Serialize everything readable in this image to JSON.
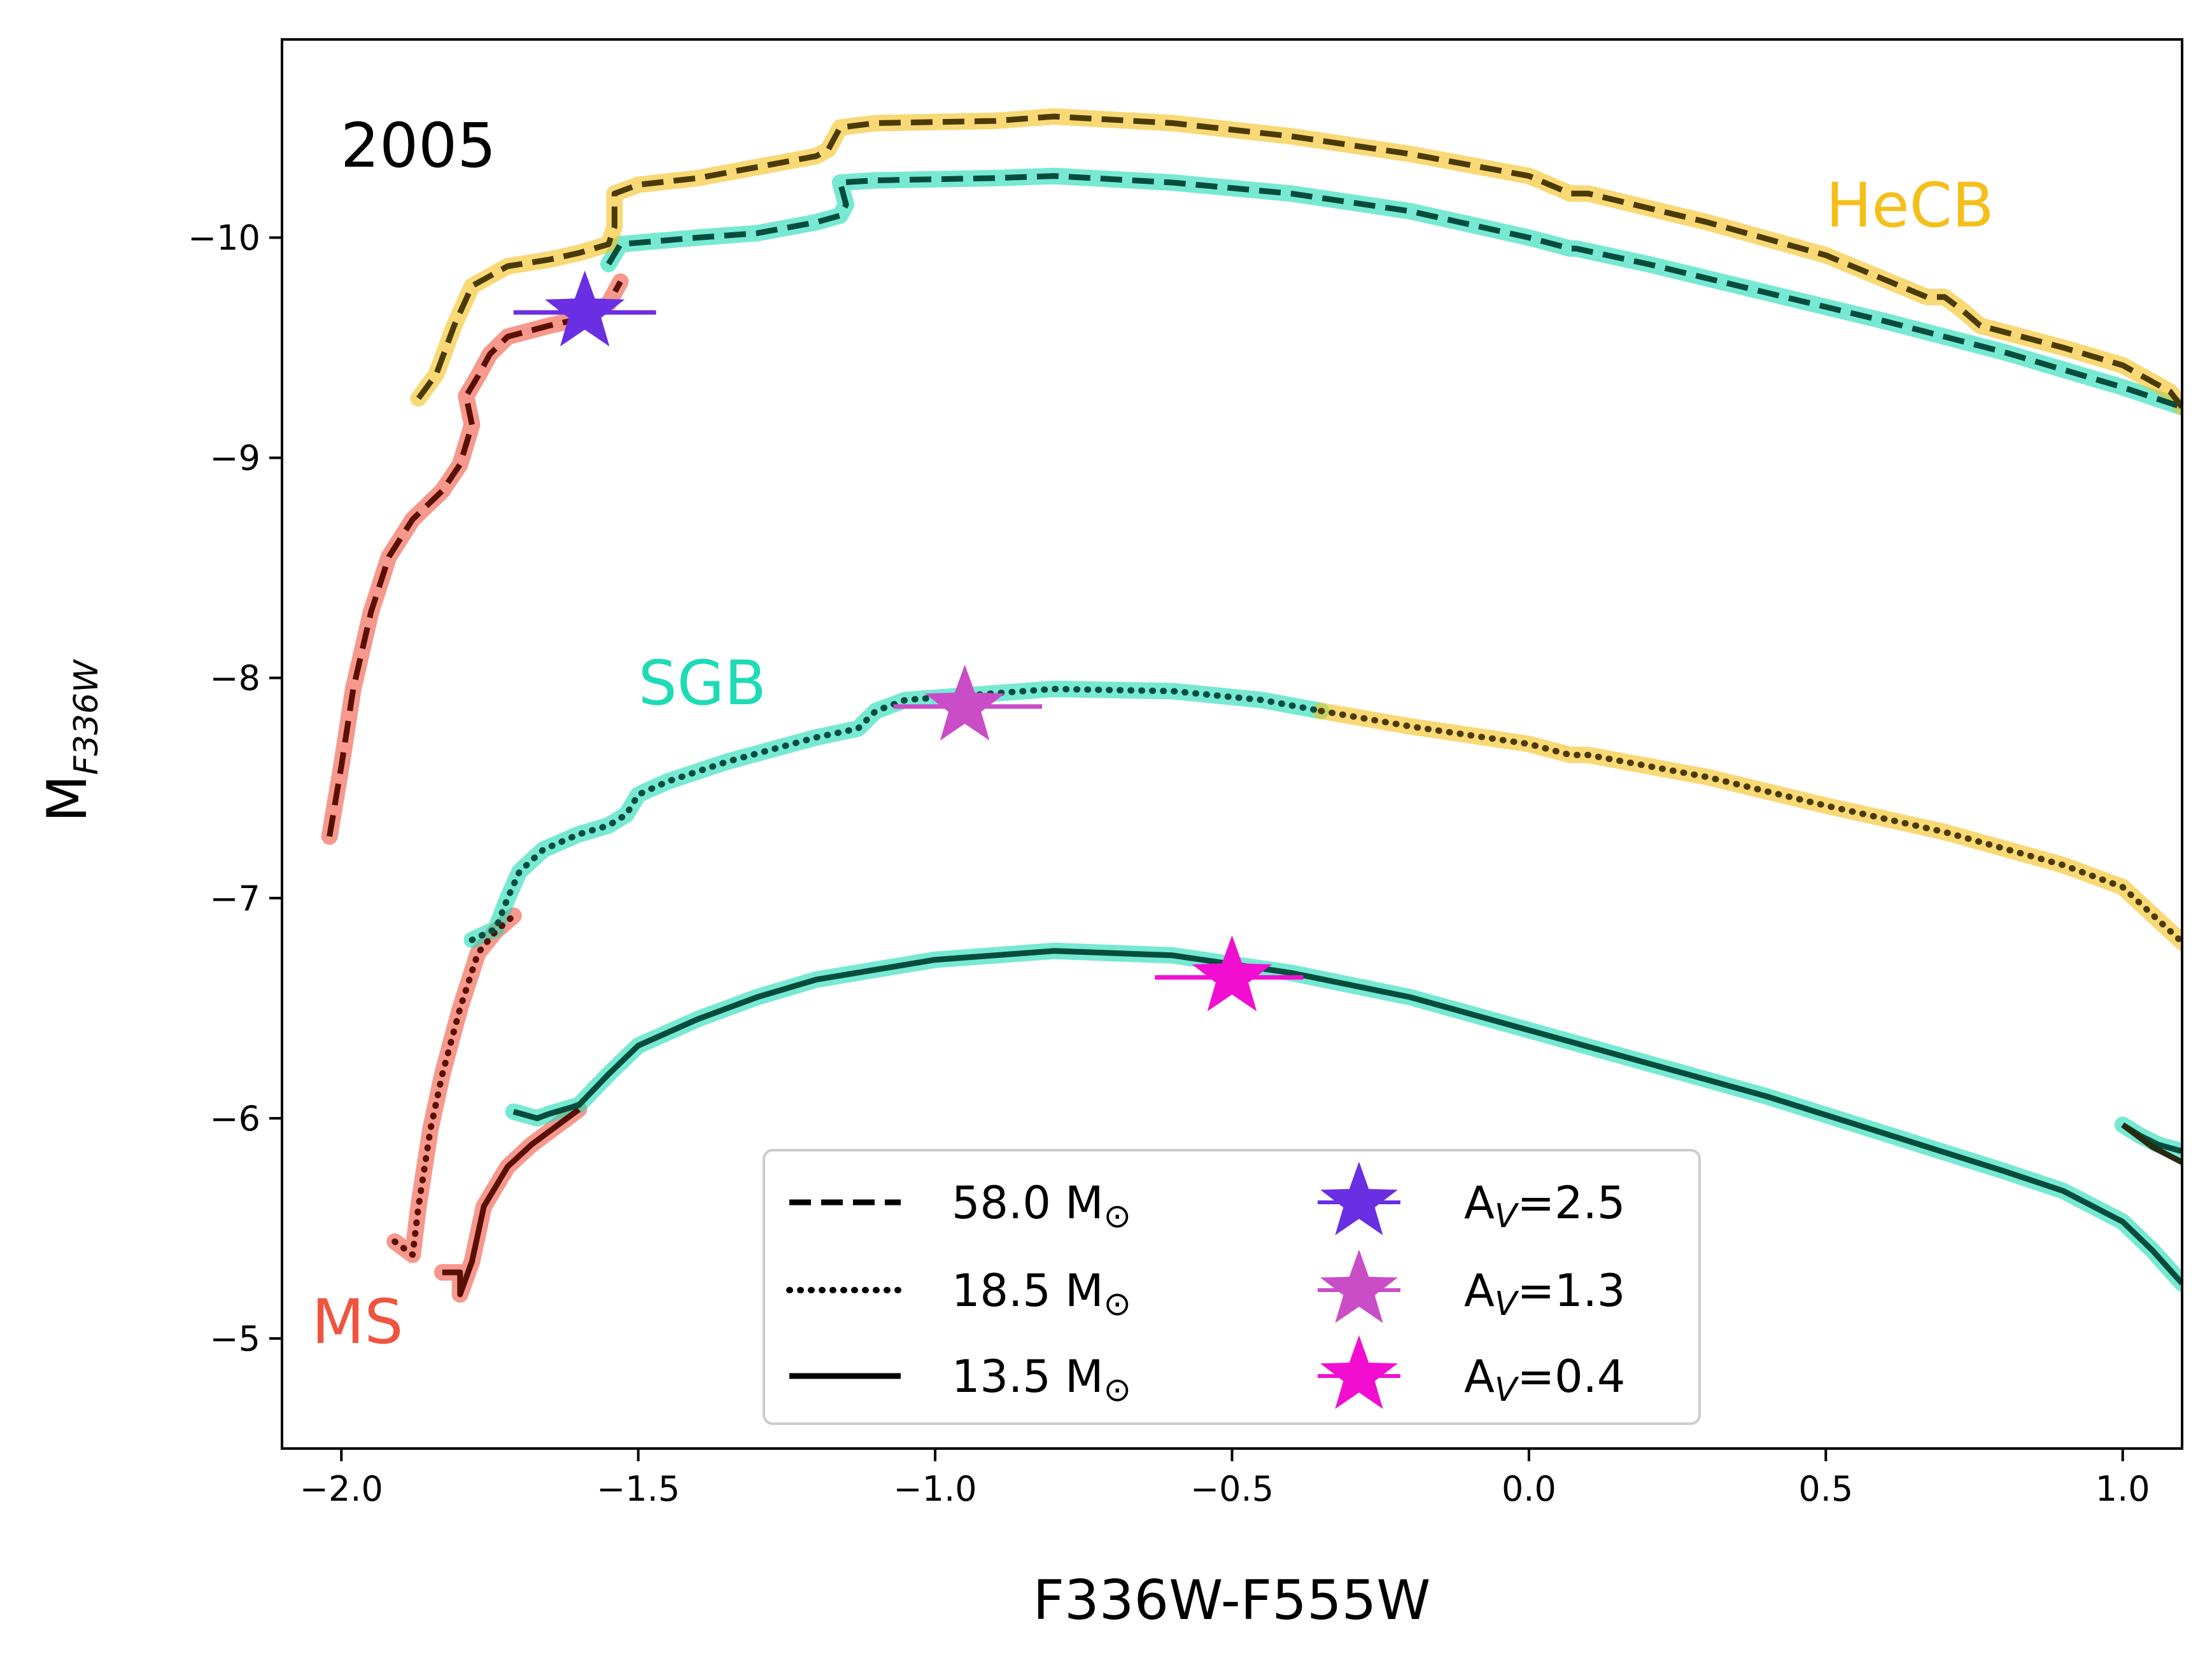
{
  "chart_data": {
    "type": "line",
    "title": "",
    "epoch_label": "2005",
    "xlabel": "F336W-F555W",
    "ylabel": {
      "main": "M",
      "sub": "F336W"
    },
    "xlim": [
      -2.1,
      1.1
    ],
    "ylim": [
      -4.5,
      -10.9
    ],
    "y_inverted": true,
    "xticks": [
      -2.0,
      -1.5,
      -1.0,
      -0.5,
      0.0,
      0.5,
      1.0
    ],
    "xtick_labels": [
      "−2.0",
      "−1.5",
      "−1.0",
      "−0.5",
      "0.0",
      "0.5",
      "1.0"
    ],
    "yticks": [
      -10,
      -9,
      -8,
      -7,
      -6,
      -5
    ],
    "ytick_labels": [
      "−10",
      "−9",
      "−8",
      "−7",
      "−6",
      "−5"
    ],
    "phases": [
      {
        "name": "MS",
        "color": "#f0543e",
        "label_pos": [
          -2.05,
          -4.98
        ]
      },
      {
        "name": "SGB",
        "color": "#1ddbb5",
        "label_pos": [
          -1.5,
          -7.88
        ]
      },
      {
        "name": "HeCB",
        "color": "#f5bf1a",
        "label_pos": [
          0.5,
          -10.05
        ]
      }
    ],
    "series": [
      {
        "name": "58.0 M⊙",
        "style": "dashed",
        "segments": [
          {
            "phase": "MS",
            "points": [
              [
                -2.02,
                -7.28
              ],
              [
                -2.0,
                -7.6
              ],
              [
                -1.98,
                -7.95
              ],
              [
                -1.95,
                -8.3
              ],
              [
                -1.92,
                -8.55
              ],
              [
                -1.88,
                -8.72
              ],
              [
                -1.83,
                -8.85
              ],
              [
                -1.8,
                -8.97
              ],
              [
                -1.78,
                -9.15
              ],
              [
                -1.79,
                -9.28
              ],
              [
                -1.77,
                -9.37
              ],
              [
                -1.75,
                -9.47
              ],
              [
                -1.72,
                -9.55
              ],
              [
                -1.65,
                -9.6
              ],
              [
                -1.6,
                -9.63
              ],
              [
                -1.55,
                -9.7
              ],
              [
                -1.53,
                -9.8
              ]
            ]
          },
          {
            "phase": "SGB",
            "points": [
              [
                -1.55,
                -9.88
              ],
              [
                -1.53,
                -9.97
              ],
              [
                -1.4,
                -10.0
              ],
              [
                -1.3,
                -10.02
              ],
              [
                -1.2,
                -10.07
              ],
              [
                -1.16,
                -10.1
              ],
              [
                -1.15,
                -10.15
              ],
              [
                -1.16,
                -10.25
              ],
              [
                -1.1,
                -10.26
              ],
              [
                -0.9,
                -10.27
              ],
              [
                -0.8,
                -10.28
              ],
              [
                -0.6,
                -10.25
              ],
              [
                -0.4,
                -10.2
              ],
              [
                -0.2,
                -10.12
              ],
              [
                0.0,
                -10.0
              ],
              [
                0.07,
                -9.95
              ],
              [
                0.08,
                -9.95
              ],
              [
                0.2,
                -9.88
              ],
              [
                0.4,
                -9.75
              ],
              [
                0.6,
                -9.62
              ],
              [
                0.8,
                -9.48
              ],
              [
                1.0,
                -9.32
              ],
              [
                1.1,
                -9.23
              ]
            ]
          },
          {
            "phase": "HeCB",
            "points": [
              [
                -1.87,
                -9.27
              ],
              [
                -1.84,
                -9.38
              ],
              [
                -1.81,
                -9.6
              ],
              [
                -1.78,
                -9.78
              ],
              [
                -1.72,
                -9.87
              ],
              [
                -1.65,
                -9.9
              ],
              [
                -1.6,
                -9.93
              ],
              [
                -1.55,
                -9.97
              ],
              [
                -1.54,
                -10.05
              ],
              [
                -1.54,
                -10.2
              ],
              [
                -1.5,
                -10.24
              ],
              [
                -1.4,
                -10.27
              ],
              [
                -1.3,
                -10.32
              ],
              [
                -1.2,
                -10.37
              ],
              [
                -1.18,
                -10.4
              ],
              [
                -1.16,
                -10.5
              ],
              [
                -1.1,
                -10.52
              ],
              [
                -0.9,
                -10.53
              ],
              [
                -0.8,
                -10.55
              ],
              [
                -0.6,
                -10.52
              ],
              [
                -0.4,
                -10.46
              ],
              [
                -0.2,
                -10.38
              ],
              [
                0.0,
                -10.28
              ],
              [
                0.07,
                -10.2
              ],
              [
                0.1,
                -10.2
              ],
              [
                0.3,
                -10.07
              ],
              [
                0.5,
                -9.92
              ],
              [
                0.67,
                -9.73
              ],
              [
                0.7,
                -9.73
              ],
              [
                0.73,
                -9.67
              ],
              [
                0.76,
                -9.6
              ],
              [
                0.9,
                -9.5
              ],
              [
                1.0,
                -9.42
              ],
              [
                1.08,
                -9.3
              ],
              [
                1.1,
                -9.23
              ]
            ]
          }
        ]
      },
      {
        "name": "18.5 M⊙",
        "style": "dotted",
        "segments": [
          {
            "phase": "MS",
            "points": [
              [
                -1.91,
                -5.44
              ],
              [
                -1.88,
                -5.38
              ],
              [
                -1.87,
                -5.6
              ],
              [
                -1.85,
                -5.95
              ],
              [
                -1.83,
                -6.2
              ],
              [
                -1.8,
                -6.5
              ],
              [
                -1.77,
                -6.75
              ],
              [
                -1.74,
                -6.85
              ],
              [
                -1.71,
                -6.92
              ]
            ]
          },
          {
            "phase": "SGB",
            "points": [
              [
                -1.78,
                -6.81
              ],
              [
                -1.74,
                -6.86
              ],
              [
                -1.72,
                -7.0
              ],
              [
                -1.7,
                -7.12
              ],
              [
                -1.66,
                -7.22
              ],
              [
                -1.6,
                -7.29
              ],
              [
                -1.55,
                -7.33
              ],
              [
                -1.52,
                -7.38
              ],
              [
                -1.5,
                -7.47
              ],
              [
                -1.45,
                -7.53
              ],
              [
                -1.35,
                -7.62
              ],
              [
                -1.2,
                -7.73
              ],
              [
                -1.13,
                -7.77
              ],
              [
                -1.1,
                -7.85
              ],
              [
                -1.05,
                -7.9
              ],
              [
                -0.9,
                -7.93
              ],
              [
                -0.8,
                -7.95
              ],
              [
                -0.6,
                -7.94
              ],
              [
                -0.45,
                -7.9
              ],
              [
                -0.35,
                -7.85
              ]
            ]
          },
          {
            "phase": "HeCB",
            "points": [
              [
                -0.35,
                -7.85
              ],
              [
                -0.2,
                -7.78
              ],
              [
                0.0,
                -7.7
              ],
              [
                0.07,
                -7.65
              ],
              [
                0.1,
                -7.65
              ],
              [
                0.3,
                -7.55
              ],
              [
                0.5,
                -7.42
              ],
              [
                0.7,
                -7.3
              ],
              [
                0.9,
                -7.15
              ],
              [
                1.0,
                -7.05
              ],
              [
                1.1,
                -6.8
              ]
            ]
          }
        ]
      },
      {
        "name": "13.5 M⊙",
        "style": "solid",
        "segments": [
          {
            "phase": "MS",
            "points": [
              [
                -1.83,
                -5.3
              ],
              [
                -1.8,
                -5.3
              ],
              [
                -1.8,
                -5.2
              ],
              [
                -1.78,
                -5.35
              ],
              [
                -1.76,
                -5.6
              ],
              [
                -1.72,
                -5.78
              ],
              [
                -1.68,
                -5.88
              ],
              [
                -1.63,
                -5.98
              ],
              [
                -1.6,
                -6.04
              ]
            ]
          },
          {
            "phase": "SGB",
            "points": [
              [
                -1.71,
                -6.03
              ],
              [
                -1.67,
                -6.0
              ],
              [
                -1.65,
                -6.02
              ],
              [
                -1.6,
                -6.06
              ],
              [
                -1.55,
                -6.2
              ],
              [
                -1.5,
                -6.33
              ],
              [
                -1.4,
                -6.45
              ],
              [
                -1.3,
                -6.55
              ],
              [
                -1.2,
                -6.63
              ],
              [
                -1.0,
                -6.72
              ],
              [
                -0.8,
                -6.76
              ],
              [
                -0.6,
                -6.74
              ],
              [
                -0.4,
                -6.66
              ],
              [
                -0.2,
                -6.55
              ],
              [
                0.0,
                -6.4
              ],
              [
                0.2,
                -6.25
              ],
              [
                0.4,
                -6.1
              ],
              [
                0.6,
                -5.93
              ],
              [
                0.8,
                -5.76
              ],
              [
                0.9,
                -5.67
              ],
              [
                1.0,
                -5.53
              ],
              [
                1.05,
                -5.4
              ],
              [
                1.1,
                -5.25
              ]
            ]
          },
          {
            "phase": "SGB",
            "points": [
              [
                1.0,
                -5.97
              ],
              [
                1.03,
                -5.92
              ],
              [
                1.06,
                -5.88
              ],
              [
                1.1,
                -5.85
              ]
            ]
          }
        ],
        "dark_extra": [
          [
            [
              1.0,
              -5.97
            ],
            [
              1.05,
              -5.87
            ],
            [
              1.1,
              -5.8
            ]
          ]
        ]
      }
    ],
    "stars": [
      {
        "name": "Aᵥ=2.5",
        "label": "A",
        "sub": "V",
        "value": "=2.5",
        "color": "#6a2ee3",
        "x": -1.59,
        "y": -9.66,
        "xerr": [
          0.12,
          0.12
        ]
      },
      {
        "name": "Aᵥ=1.3",
        "label": "A",
        "sub": "V",
        "value": "=1.3",
        "color": "#c94dc6",
        "x": -0.95,
        "y": -7.87,
        "xerr": [
          0.12,
          0.13
        ]
      },
      {
        "name": "Aᵥ=0.4",
        "label": "A",
        "sub": "V",
        "value": "=0.4",
        "color": "#f20ed1",
        "x": -0.5,
        "y": -6.64,
        "xerr": [
          0.13,
          0.12
        ]
      }
    ],
    "legend": {
      "placement": "lower-center",
      "lines": [
        {
          "label": "58.0 M",
          "unit": "⊙",
          "style": "dashed"
        },
        {
          "label": "18.5 M",
          "unit": "⊙",
          "style": "dotted"
        },
        {
          "label": "13.5 M",
          "unit": "⊙",
          "style": "solid"
        }
      ],
      "stars": [
        {
          "label": "A",
          "sub": "V",
          "value": "=2.5",
          "color": "#6a2ee3"
        },
        {
          "label": "A",
          "sub": "V",
          "value": "=1.3",
          "color": "#c94dc6"
        },
        {
          "label": "A",
          "sub": "V",
          "value": "=0.4",
          "color": "#f20ed1"
        }
      ]
    },
    "colors": {
      "dark_line": "#000000",
      "axis": "#000000"
    }
  }
}
